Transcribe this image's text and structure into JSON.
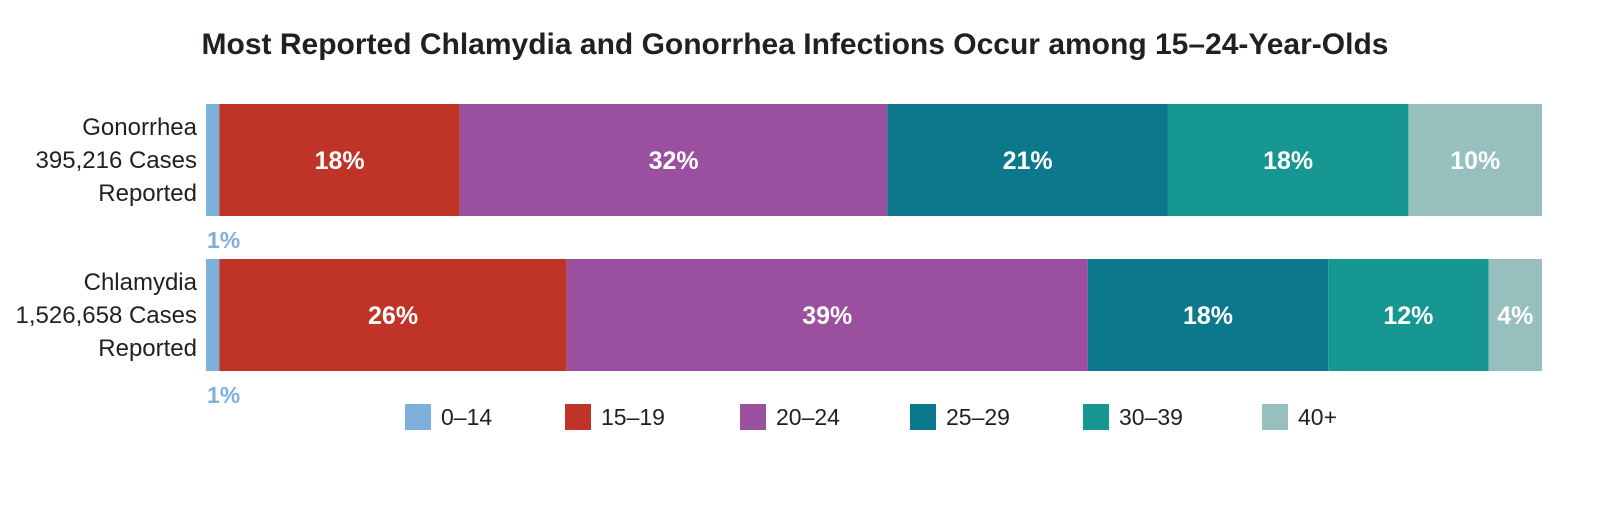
{
  "chart_data": {
    "type": "bar",
    "orientation": "horizontal",
    "stacked": true,
    "title": "Most Reported Chlamydia and Gonorrhea Infections Occur among 15–24-Year-Olds",
    "categories": [
      {
        "name": "Gonorrhea",
        "lines": [
          "Gonorrhea",
          "395,216 Cases",
          "Reported"
        ]
      },
      {
        "name": "Chlamydia",
        "lines": [
          "Chlamydia",
          "1,526,658 Cases",
          "Reported"
        ]
      }
    ],
    "series": [
      {
        "name": "0–14",
        "color": "#7fb0dc",
        "values": [
          1,
          1
        ],
        "labels": [
          "1%",
          "1%"
        ],
        "label_style": "below"
      },
      {
        "name": "15–19",
        "color": "#c03428",
        "values": [
          18,
          26
        ],
        "labels": [
          "18%",
          "26%"
        ],
        "label_style": "inside"
      },
      {
        "name": "20–24",
        "color": "#9b4f9f",
        "values": [
          32,
          39
        ],
        "labels": [
          "32%",
          "39%"
        ],
        "label_style": "inside"
      },
      {
        "name": "25–29",
        "color": "#0b788c",
        "values": [
          21,
          18
        ],
        "labels": [
          "21%",
          "18%"
        ],
        "label_style": "inside"
      },
      {
        "name": "30–39",
        "color": "#169792",
        "values": [
          18,
          12
        ],
        "labels": [
          "18%",
          "12%"
        ],
        "label_style": "inside"
      },
      {
        "name": "40+",
        "color": "#96bfbe",
        "values": [
          10,
          4
        ],
        "labels": [
          "10%",
          "4%"
        ],
        "label_style": "inside"
      }
    ],
    "legend_position": "bottom",
    "grid": false
  }
}
